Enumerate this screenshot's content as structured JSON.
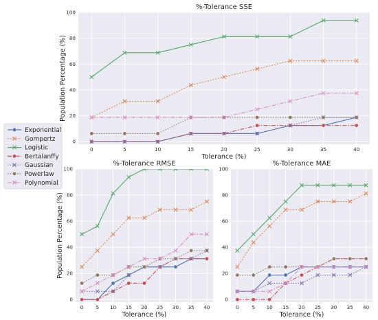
{
  "figure": {
    "series_styles": [
      {
        "name": "Exponential",
        "color": "#4c72b0",
        "marker": "circle",
        "dash": ""
      },
      {
        "name": "Gompertz",
        "color": "#dd8452",
        "marker": "x",
        "dash": "2,2"
      },
      {
        "name": "Logistic",
        "color": "#55a868",
        "marker": "x",
        "dash": ""
      },
      {
        "name": "Bertalanffy",
        "color": "#c44e52",
        "marker": "circle",
        "dash": "6,2,1.5,2"
      },
      {
        "name": "Gaussian",
        "color": "#8172b3",
        "marker": "x",
        "dash": "1.5,2"
      },
      {
        "name": "Powerlaw",
        "color": "#937860",
        "marker": "circle",
        "dash": "1.5,2"
      },
      {
        "name": "Polynomial",
        "color": "#da8bc3",
        "marker": "x",
        "dash": "6,2,1.5,2"
      }
    ],
    "legend": {
      "position": "left, between top and bottom rows",
      "items": [
        "Exponential",
        "Gompertz",
        "Logistic",
        "Bertalanffy",
        "Gaussian",
        "Powerlaw",
        "Polynomial"
      ]
    }
  },
  "chart_data": [
    {
      "type": "line",
      "title": "%-Tolerance SSE",
      "xlabel": "Tolerance (%)",
      "ylabel": "Population Percentage (%)",
      "x": [
        0,
        5,
        10,
        15,
        20,
        25,
        30,
        35,
        40
      ],
      "xlim": [
        -2,
        42
      ],
      "ylim": [
        -2,
        100
      ],
      "xticks": [
        "0",
        "5",
        "10",
        "15",
        "20",
        "25",
        "30",
        "35",
        "40"
      ],
      "yticks": [
        "0",
        "20",
        "40",
        "60",
        "80",
        "100"
      ],
      "grid": true,
      "series": [
        {
          "name": "Exponential",
          "values": [
            0,
            0,
            0,
            6.25,
            6.25,
            6.25,
            12.5,
            12.5,
            18.75
          ]
        },
        {
          "name": "Gompertz",
          "values": [
            18.75,
            31.25,
            31.25,
            43.75,
            50,
            56.25,
            62.5,
            62.5,
            62.5
          ]
        },
        {
          "name": "Logistic",
          "values": [
            50,
            68.75,
            68.75,
            75,
            81.25,
            81.25,
            81.25,
            93.75,
            93.75
          ]
        },
        {
          "name": "Bertalanffy",
          "values": [
            0,
            0,
            0,
            6.25,
            6.25,
            12.5,
            12.5,
            12.5,
            12.5
          ]
        },
        {
          "name": "Gaussian",
          "values": [
            0,
            0,
            0,
            6.25,
            6.25,
            6.25,
            12.5,
            18.75,
            18.75
          ]
        },
        {
          "name": "Powerlaw",
          "values": [
            6.25,
            6.25,
            6.25,
            18.75,
            18.75,
            18.75,
            18.75,
            18.75,
            18.75
          ]
        },
        {
          "name": "Polynomial",
          "values": [
            18.75,
            18.75,
            18.75,
            18.75,
            18.75,
            25,
            31.25,
            37.5,
            37.5
          ]
        }
      ]
    },
    {
      "type": "line",
      "title": "%-Tolerance RMSE",
      "xlabel": "Tolerance (%)",
      "ylabel": "Population Percentage (%)",
      "x": [
        0,
        5,
        10,
        15,
        20,
        25,
        30,
        35,
        40
      ],
      "xlim": [
        -2,
        42
      ],
      "ylim": [
        -2,
        100
      ],
      "xticks": [
        "0",
        "5",
        "10",
        "15",
        "20",
        "25",
        "30",
        "35",
        "40"
      ],
      "yticks": [
        "0",
        "20",
        "40",
        "60",
        "80",
        "100"
      ],
      "grid": true,
      "series": [
        {
          "name": "Exponential",
          "values": [
            0,
            0,
            12.5,
            18.75,
            25,
            25,
            25,
            31.25,
            31.25
          ]
        },
        {
          "name": "Gompertz",
          "values": [
            25,
            37.5,
            50,
            62.5,
            62.5,
            68.75,
            68.75,
            68.75,
            75
          ]
        },
        {
          "name": "Logistic",
          "values": [
            50,
            56.25,
            81.25,
            93.75,
            100,
            100,
            100,
            100,
            100
          ]
        },
        {
          "name": "Bertalanffy",
          "values": [
            0,
            0,
            6.25,
            12.5,
            12.5,
            25,
            31.25,
            31.25,
            31.25
          ]
        },
        {
          "name": "Gaussian",
          "values": [
            6.25,
            6.25,
            6.25,
            18.75,
            25,
            25,
            31.25,
            31.25,
            37.5
          ]
        },
        {
          "name": "Powerlaw",
          "values": [
            12.5,
            18.75,
            18.75,
            25,
            25,
            31.25,
            31.25,
            37.5,
            37.5
          ]
        },
        {
          "name": "Polynomial",
          "values": [
            6.25,
            12.5,
            18.75,
            25,
            31.25,
            31.25,
            37.5,
            50,
            50
          ]
        }
      ]
    },
    {
      "type": "line",
      "title": "%-Tolerance MAE",
      "xlabel": "Tolerance (%)",
      "ylabel": "",
      "x": [
        0,
        5,
        10,
        15,
        20,
        25,
        30,
        35,
        40
      ],
      "xlim": [
        -2,
        42
      ],
      "ylim": [
        -2,
        100
      ],
      "xticks": [
        "0",
        "5",
        "10",
        "15",
        "20",
        "25",
        "30",
        "35",
        "40"
      ],
      "yticks": [
        "0",
        "20",
        "40",
        "60",
        "80",
        "100"
      ],
      "grid": true,
      "series": [
        {
          "name": "Exponential",
          "values": [
            6.25,
            6.25,
            18.75,
            18.75,
            25,
            25,
            25,
            25,
            25
          ]
        },
        {
          "name": "Gompertz",
          "values": [
            25,
            43.75,
            56.25,
            68.75,
            68.75,
            75,
            75,
            75,
            81.25
          ]
        },
        {
          "name": "Logistic",
          "values": [
            37.5,
            50,
            62.5,
            75,
            87.5,
            87.5,
            87.5,
            87.5,
            87.5
          ]
        },
        {
          "name": "Bertalanffy",
          "values": [
            0,
            0,
            0,
            12.5,
            18.75,
            25,
            31.25,
            31.25,
            31.25
          ]
        },
        {
          "name": "Gaussian",
          "values": [
            6.25,
            6.25,
            12.5,
            12.5,
            12.5,
            18.75,
            18.75,
            18.75,
            25
          ]
        },
        {
          "name": "Powerlaw",
          "values": [
            18.75,
            18.75,
            25,
            25,
            25,
            25,
            31.25,
            31.25,
            31.25
          ]
        },
        {
          "name": "Polynomial",
          "values": [
            6.25,
            6.25,
            6.25,
            12.5,
            25,
            25,
            25,
            25,
            25
          ]
        }
      ]
    }
  ]
}
